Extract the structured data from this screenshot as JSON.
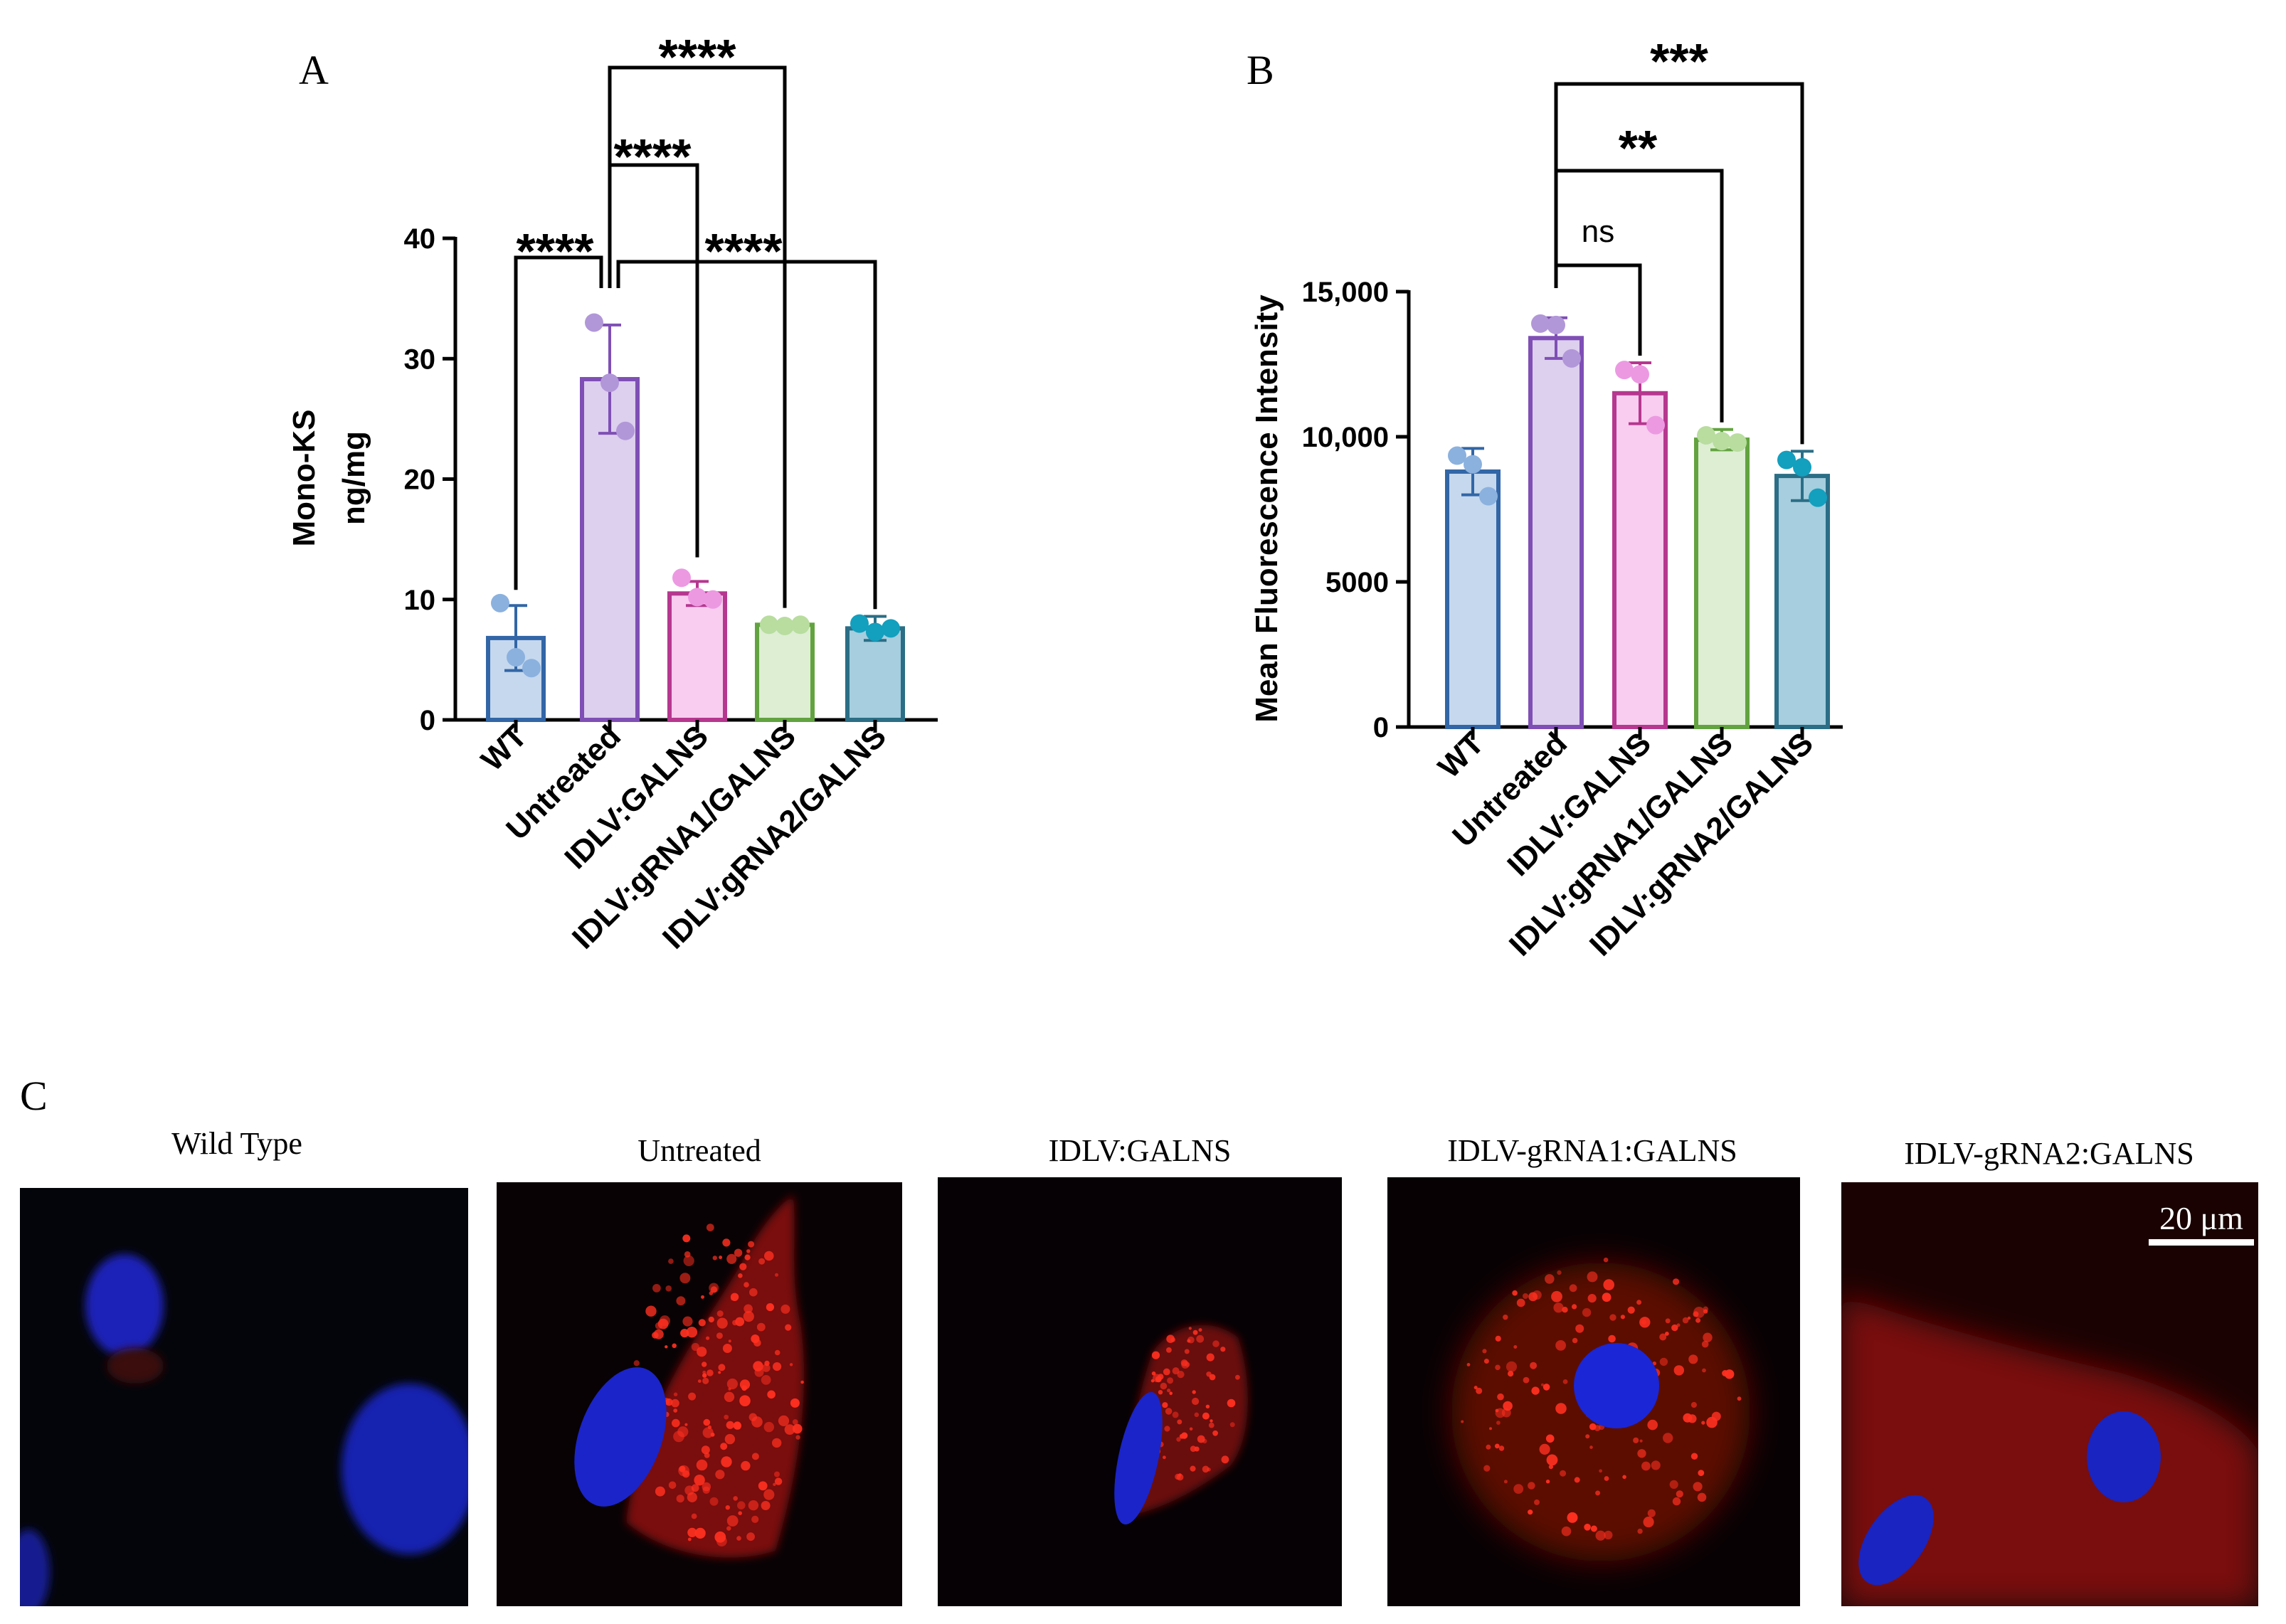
{
  "panel_letters": {
    "a": "A",
    "b": "B",
    "c": "C"
  },
  "chart_data": [
    {
      "type": "bar",
      "panel": "A",
      "ylabel_lines": [
        "Mono-KS",
        "ng/mg"
      ],
      "ylim": [
        0,
        40
      ],
      "yticks": [
        0,
        10,
        20,
        30,
        40
      ],
      "ytick_labels": [
        "0",
        "10",
        "20",
        "30",
        "40"
      ],
      "categories": [
        "WT",
        "Untreated",
        "IDLV:GALNS",
        "IDLV:gRNA1/GALNS",
        "IDLV:gRNA2/GALNS"
      ],
      "values": [
        6.8,
        28.3,
        10.5,
        7.9,
        7.6
      ],
      "error": [
        2.7,
        4.5,
        1.0,
        0.2,
        1.0
      ],
      "points": [
        [
          9.7,
          5.2,
          4.3
        ],
        [
          33.0,
          28.0,
          24.0
        ],
        [
          11.8,
          10.2,
          10.0
        ],
        [
          7.9,
          7.8,
          7.9
        ],
        [
          8.0,
          7.3,
          7.6
        ]
      ],
      "fill_colors": [
        "#c5d8ee",
        "#ddcfee",
        "#f8cdf0",
        "#ddeed3",
        "#a6cede"
      ],
      "edge_colors": [
        "#3266a6",
        "#7f4fb5",
        "#b6378f",
        "#62a33f",
        "#2b6e86"
      ],
      "point_colors": [
        "#8bb1de",
        "#b197d8",
        "#ec99e2",
        "#b8dd9f",
        "#139fbe"
      ],
      "comparisons": [
        {
          "from": "WT",
          "to": "Untreated",
          "label": "****"
        },
        {
          "from": "Untreated",
          "to": "IDLV:GALNS",
          "label": "****"
        },
        {
          "from": "Untreated",
          "to": "IDLV:gRNA1/GALNS",
          "label": "****"
        },
        {
          "from": "Untreated",
          "to": "IDLV:gRNA2/GALNS",
          "label": "****"
        }
      ]
    },
    {
      "type": "bar",
      "panel": "B",
      "ylabel": "Mean Fluorescence Intensity",
      "ylim": [
        0,
        15000
      ],
      "yticks": [
        0,
        5000,
        10000,
        15000
      ],
      "ytick_labels": [
        "0",
        "5000",
        "10,000",
        "15,000"
      ],
      "categories": [
        "WT",
        "Untreated",
        "IDLV:GALNS",
        "IDLV:gRNA1/GALNS",
        "IDLV:gRNA2/GALNS"
      ],
      "values": [
        8800,
        13400,
        11500,
        9900,
        8650
      ],
      "error": [
        800,
        700,
        1050,
        350,
        850
      ],
      "points": [
        [
          9350,
          9050,
          7950
        ],
        [
          13900,
          13850,
          12700
        ],
        [
          12300,
          12150,
          10400
        ],
        [
          10050,
          9850,
          9800
        ],
        [
          9200,
          8950,
          7900
        ]
      ],
      "fill_colors": [
        "#c5d8ee",
        "#ddcfee",
        "#f8cdf0",
        "#ddeed3",
        "#a6cede"
      ],
      "edge_colors": [
        "#3266a6",
        "#7f4fb5",
        "#b6378f",
        "#62a33f",
        "#2b6e86"
      ],
      "point_colors": [
        "#8bb1de",
        "#b197d8",
        "#ec99e2",
        "#b8dd9f",
        "#139fbe"
      ],
      "comparisons": [
        {
          "from": "Untreated",
          "to": "IDLV:GALNS",
          "label": "ns"
        },
        {
          "from": "Untreated",
          "to": "IDLV:gRNA1/GALNS",
          "label": "**"
        },
        {
          "from": "Untreated",
          "to": "IDLV:gRNA2/GALNS",
          "label": "***"
        }
      ]
    }
  ],
  "micrographs": {
    "titles": [
      "Wild Type",
      "Untreated",
      "IDLV:GALNS",
      "IDLV-gRNA1:GALNS",
      "IDLV-gRNA2:GALNS"
    ],
    "scale_bar_label": "20 μm",
    "nucleus_color": "#1a22c8",
    "stain_color": "#e8221a"
  }
}
